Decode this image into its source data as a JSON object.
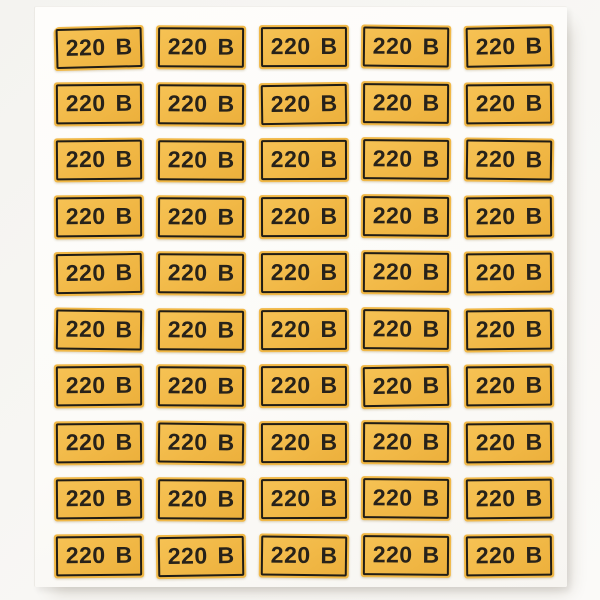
{
  "photo": {
    "subject": "sheet of self-adhesive voltage warning stickers",
    "background_color": "#f6f5f2"
  },
  "sheet": {
    "background_color": "#fdfcfa",
    "grid": {
      "rows": 10,
      "columns": 5,
      "total_stickers": 50
    },
    "sticker": {
      "label": "220 В",
      "background_color": "#f1b846",
      "border_color": "#211d15",
      "text_color": "#27221a"
    }
  }
}
